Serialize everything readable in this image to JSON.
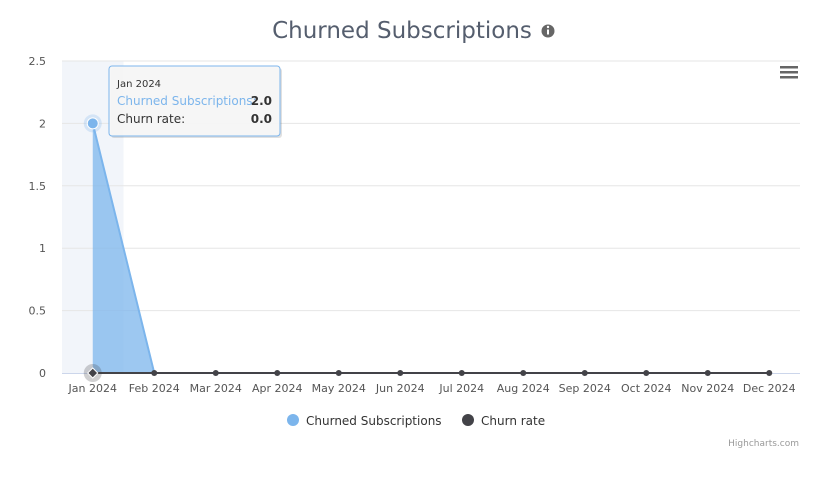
{
  "chart_data": {
    "type": "area",
    "title": "Churned Subscriptions",
    "categories": [
      "Jan 2024",
      "Feb 2024",
      "Mar 2024",
      "Apr 2024",
      "May 2024",
      "Jun 2024",
      "Jul 2024",
      "Aug 2024",
      "Sep 2024",
      "Oct 2024",
      "Nov 2024",
      "Dec 2024"
    ],
    "series": [
      {
        "name": "Churned Subscriptions",
        "type": "area",
        "color": "#7cb5ec",
        "values": [
          2,
          0,
          0,
          0,
          0,
          0,
          0,
          0,
          0,
          0,
          0,
          0
        ]
      },
      {
        "name": "Churn rate",
        "type": "line",
        "color": "#434348",
        "values": [
          0,
          0,
          0,
          0,
          0,
          0,
          0,
          0,
          0,
          0,
          0,
          0
        ]
      }
    ],
    "ylim": [
      0,
      2.5
    ],
    "yticks": [
      "0",
      "0.5",
      "1",
      "1.5",
      "2",
      "2.5"
    ],
    "ytick_values": [
      0,
      0.5,
      1,
      1.5,
      2,
      2.5
    ],
    "grid": true,
    "legend_position": "bottom-center",
    "tooltip": {
      "header": "Jan 2024",
      "rows": [
        {
          "label": "Churned Subscriptions:",
          "value": "2.0",
          "color": "#7cb5ec"
        },
        {
          "label": "Churn rate:",
          "value": "0.0",
          "color": "#333333"
        }
      ]
    },
    "credits": "Highcharts.com",
    "info_icon": "info-icon",
    "menu_icon": "hamburger-menu-icon"
  }
}
